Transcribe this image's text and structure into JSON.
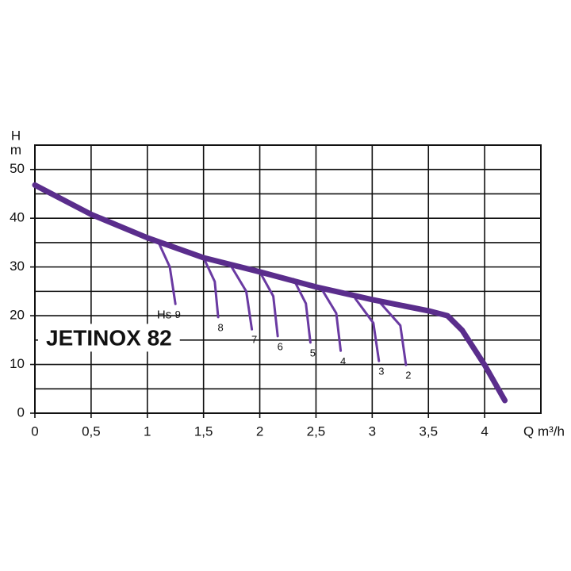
{
  "chart_data": {
    "type": "line",
    "title": "JETINOX 82",
    "x_label": "Q m³/h",
    "y_label": "H",
    "y_unit": "m",
    "annotation": "Hs",
    "xlim": [
      0,
      4.5
    ],
    "ylim": [
      0,
      55
    ],
    "xticks": [
      0,
      {
        "value": 0.5,
        "label": "0,5"
      },
      1,
      {
        "value": 1.5,
        "label": "1,5"
      },
      2,
      {
        "value": 2.5,
        "label": "2,5"
      },
      3,
      {
        "value": 3.5,
        "label": "3,5"
      },
      4
    ],
    "yticks": [
      0,
      10,
      20,
      30,
      40,
      50
    ],
    "yminor": [
      5,
      15,
      25,
      35,
      45,
      55
    ],
    "grid": true,
    "series": [
      {
        "color": "#5a2d8c",
        "x": [
          0,
          0.5,
          1,
          1.5,
          2,
          2.5,
          3,
          3.5,
          3.67,
          3.8,
          4,
          4.18
        ],
        "values": [
          46.8,
          40.8,
          36,
          31.9,
          29,
          25.9,
          23.3,
          21,
          20,
          17,
          9.9,
          2.6
        ]
      },
      {
        "name": "9",
        "color": "#6a3aa2",
        "x": [
          1.1,
          1.2,
          1.25
        ],
        "values": [
          35,
          30,
          22.4
        ]
      },
      {
        "name": "8",
        "color": "#6a3aa2",
        "x": [
          1.5,
          1.6,
          1.63
        ],
        "values": [
          31.9,
          27,
          19.7
        ]
      },
      {
        "name": "7",
        "color": "#6a3aa2",
        "x": [
          1.75,
          1.88,
          1.93
        ],
        "values": [
          30,
          25,
          17.2
        ]
      },
      {
        "name": "6",
        "color": "#6a3aa2",
        "x": [
          2,
          2.12,
          2.16
        ],
        "values": [
          29,
          24,
          15.8
        ]
      },
      {
        "name": "5",
        "color": "#6a3aa2",
        "x": [
          2.3,
          2.41,
          2.45
        ],
        "values": [
          27.5,
          22.5,
          14.5
        ]
      },
      {
        "name": "4",
        "color": "#6a3aa2",
        "x": [
          2.55,
          2.68,
          2.72
        ],
        "values": [
          25.5,
          20.5,
          12.8
        ]
      },
      {
        "name": "3",
        "color": "#6a3aa2",
        "x": [
          2.85,
          3.01,
          3.06
        ],
        "values": [
          23.5,
          18.5,
          10.7
        ]
      },
      {
        "name": "2",
        "color": "#6a3aa2",
        "x": [
          3.05,
          3.25,
          3.3
        ],
        "values": [
          23.2,
          18,
          9.9
        ]
      }
    ]
  }
}
